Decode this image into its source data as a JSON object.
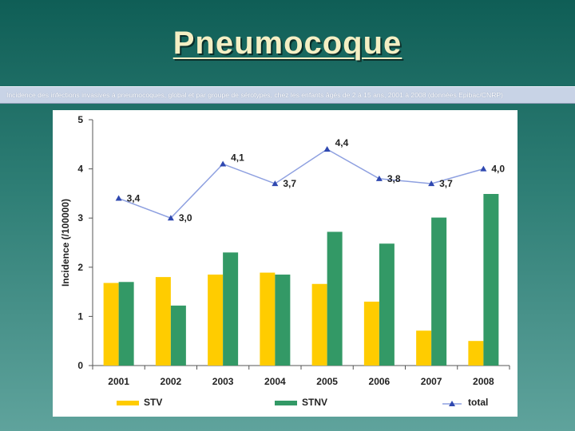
{
  "header": {
    "title": "Pneumocoque",
    "subtitle": "Incidence des infections invasives à pneumocoques, global et par groupe de sérotypes, chez les enfants âgés de 2 à 15 ans, 2001 à 2008 (données Epibac/CNRP)"
  },
  "colors": {
    "stv": "#ffcc00",
    "stnv": "#339966",
    "total": "#3f5fbf"
  },
  "chart_data": {
    "type": "bar",
    "categories": [
      "2001",
      "2002",
      "2003",
      "2004",
      "2005",
      "2006",
      "2007",
      "2008"
    ],
    "series": [
      {
        "name": "STV",
        "type": "bar",
        "values": [
          1.68,
          1.8,
          1.85,
          1.89,
          1.66,
          1.3,
          0.71,
          0.5
        ]
      },
      {
        "name": "STNV",
        "type": "bar",
        "values": [
          1.7,
          1.22,
          2.3,
          1.85,
          2.72,
          2.48,
          3.01,
          3.49
        ]
      },
      {
        "name": "total",
        "type": "line",
        "values": [
          3.4,
          3.0,
          4.1,
          3.7,
          4.4,
          3.8,
          3.7,
          4.0
        ]
      }
    ],
    "point_labels": [
      "3,4",
      "3,0",
      "4,1",
      "3,7",
      "4,4",
      "3,8",
      "3,7",
      "4,0"
    ],
    "ylabel": "Incidence (/100000)",
    "xlabel": "",
    "ylim": [
      0,
      5
    ],
    "yticks": [
      0,
      1,
      2,
      3,
      4,
      5
    ],
    "grid": false,
    "legend_position": "bottom"
  }
}
